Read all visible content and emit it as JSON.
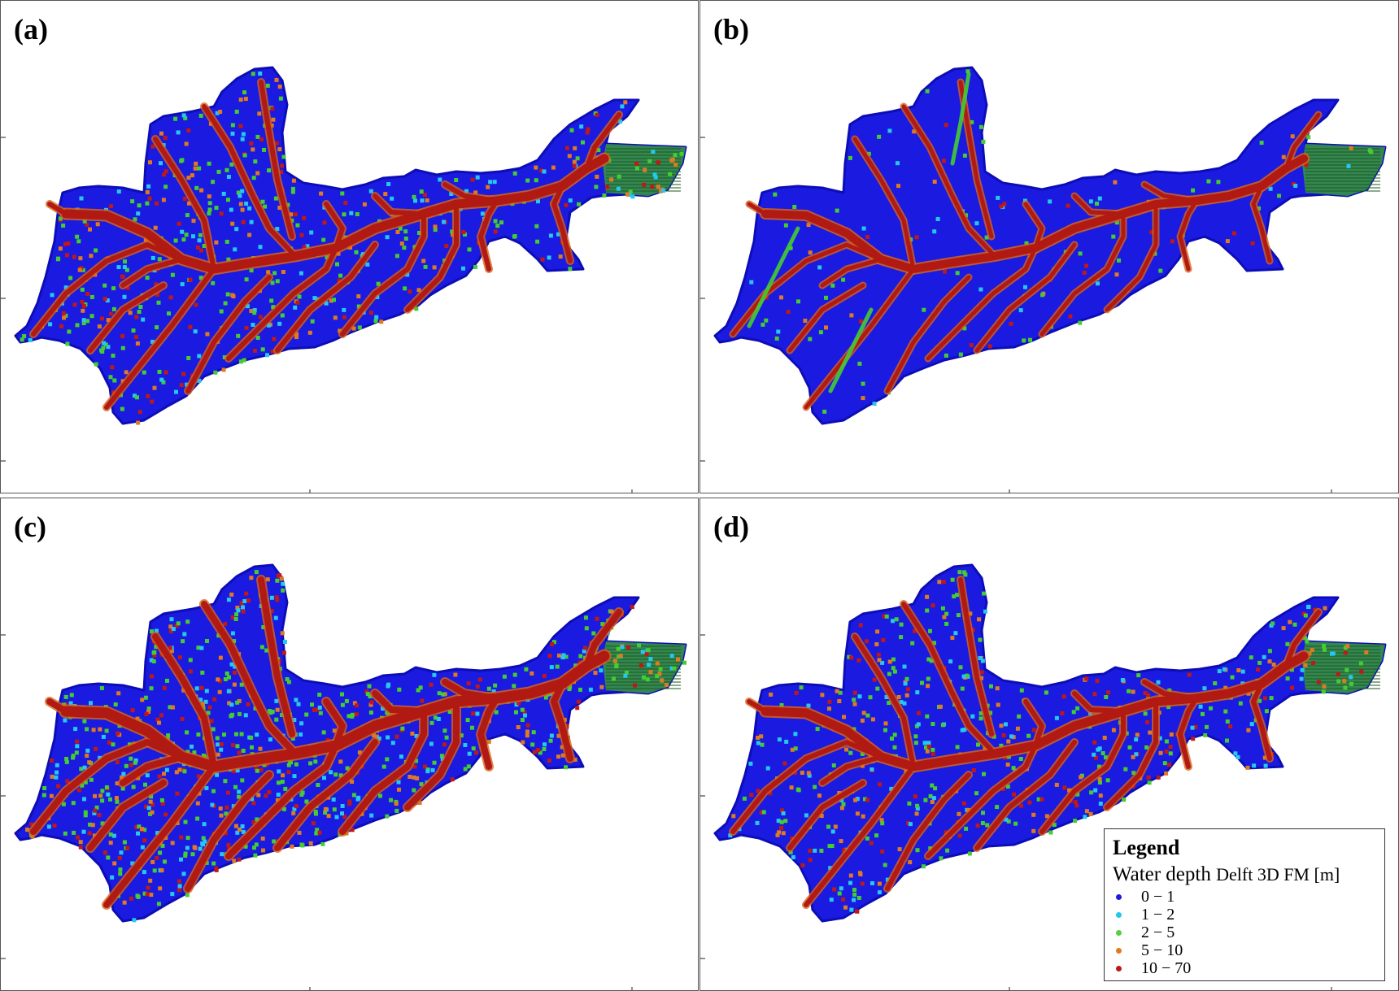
{
  "panels": [
    {
      "id": "a",
      "label": "(a)",
      "style": "mixed"
    },
    {
      "id": "b",
      "label": "(b)",
      "style": "sparse"
    },
    {
      "id": "c",
      "label": "(c)",
      "style": "dense"
    },
    {
      "id": "d",
      "label": "(d)",
      "style": "mixed"
    }
  ],
  "legend": {
    "title": "Legend",
    "subtitle_main": "Water depth",
    "subtitle_tail": "Delft 3D FM [m]",
    "classes": [
      {
        "label": "0 − 1",
        "color": "#1a1ae0"
      },
      {
        "label": "1 − 2",
        "color": "#22c8e8"
      },
      {
        "label": "2 − 5",
        "color": "#55d040"
      },
      {
        "label": "5 − 10",
        "color": "#e07a20"
      },
      {
        "label": "10 − 70",
        "color": "#c01818"
      }
    ]
  },
  "colors": {
    "basin_fill": "#1a1ae0",
    "basin_dark": "#0d0db8",
    "channel": "#b01a12",
    "channel_edge": "#d8641c",
    "green": "#44cc33",
    "cyan": "#25c8f0",
    "outlet_green": "#3a9a3a"
  }
}
